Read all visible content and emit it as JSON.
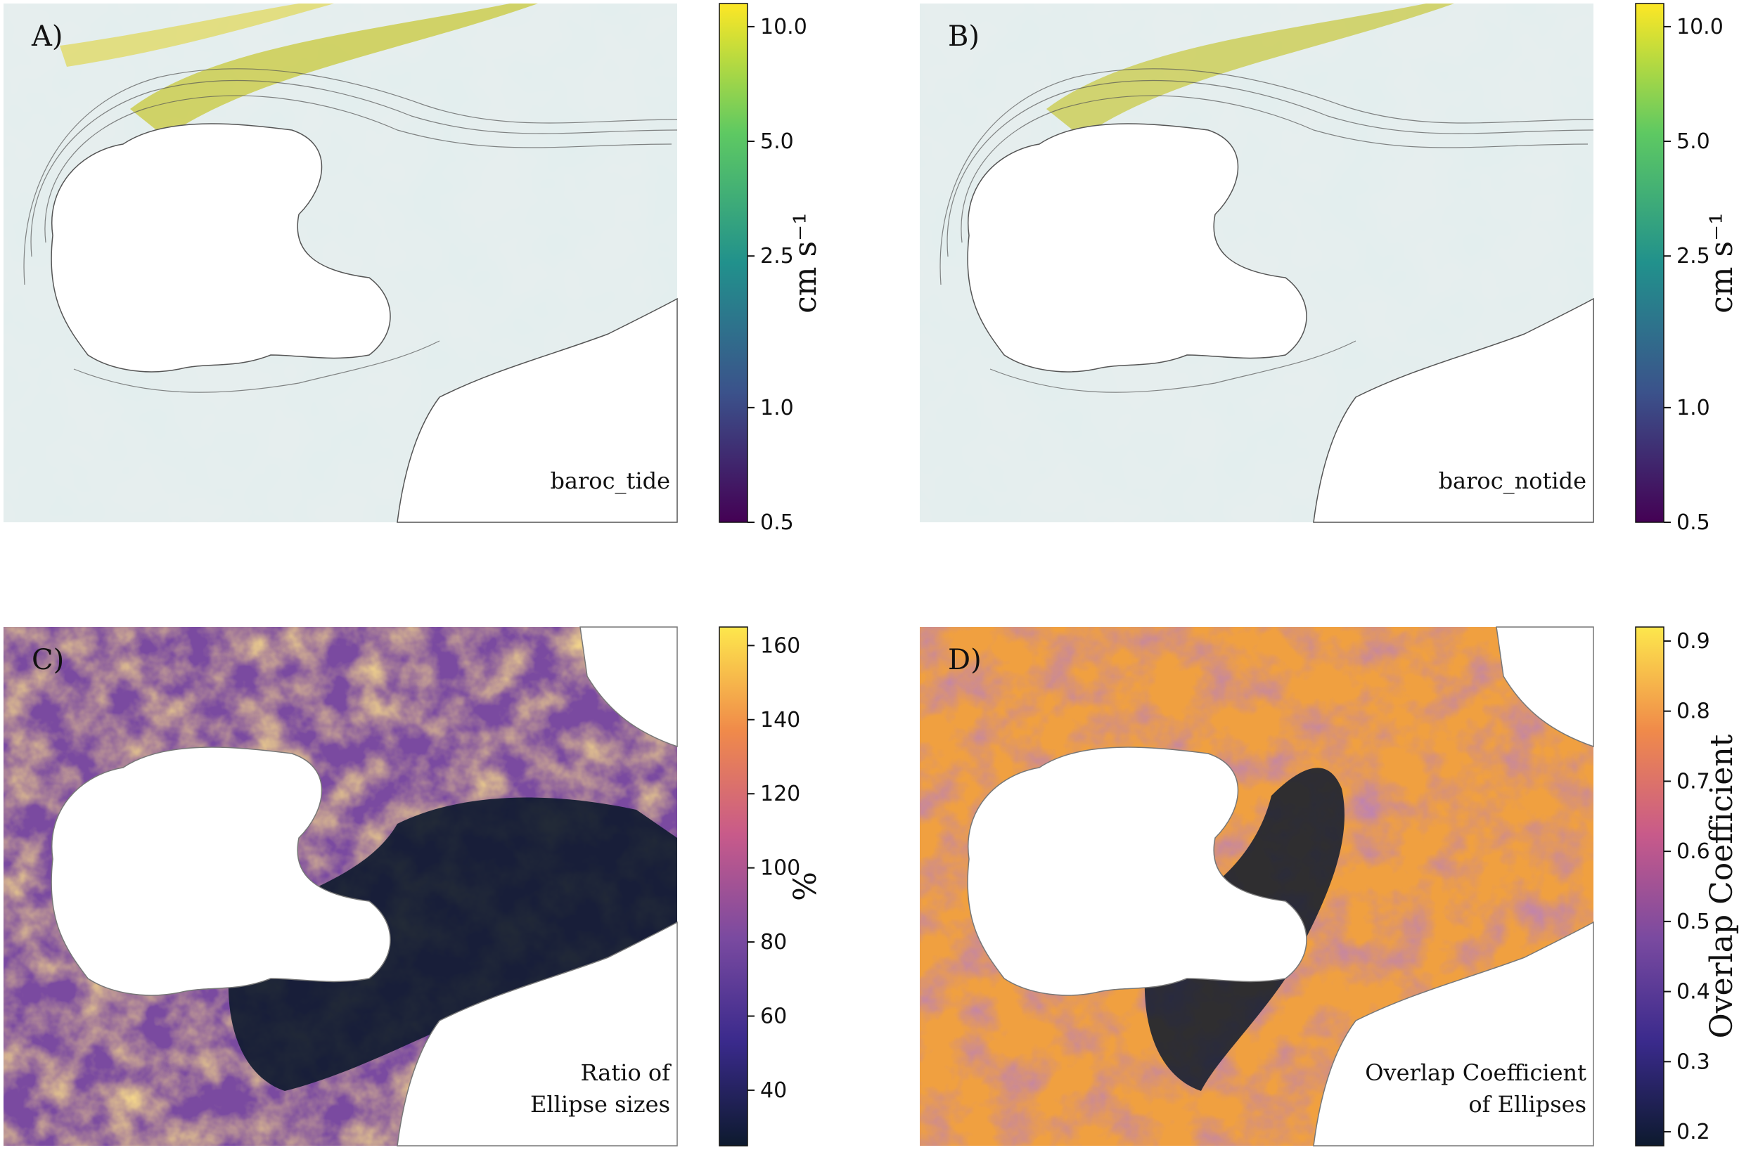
{
  "panels": [
    {
      "id": "A",
      "letter": "A)",
      "caption_lines": [
        "baroc_tide"
      ],
      "kind": "speed"
    },
    {
      "id": "B",
      "letter": "B)",
      "caption_lines": [
        "baroc_notide"
      ],
      "kind": "speed"
    },
    {
      "id": "C",
      "letter": "C)",
      "caption_lines": [
        "Ratio of",
        "Ellipse sizes"
      ],
      "kind": "ratio"
    },
    {
      "id": "D",
      "letter": "D)",
      "caption_lines": [
        "Overlap Coefficient",
        "of Ellipses"
      ],
      "kind": "overlap"
    }
  ],
  "colorbars": [
    {
      "id": "cb-a",
      "label": "cm s⁻¹",
      "scale": "log",
      "range": [
        0.5,
        11.5
      ],
      "ticks": [
        {
          "v": 0.5,
          "t": "0.5"
        },
        {
          "v": 1.0,
          "t": "1.0"
        },
        {
          "v": 2.5,
          "t": "2.5"
        },
        {
          "v": 5.0,
          "t": "5.0"
        },
        {
          "v": 10.0,
          "t": "10.0"
        }
      ],
      "colormap": "viridis"
    },
    {
      "id": "cb-b",
      "label": "cm s⁻¹",
      "scale": "log",
      "range": [
        0.5,
        11.5
      ],
      "ticks": [
        {
          "v": 0.5,
          "t": "0.5"
        },
        {
          "v": 1.0,
          "t": "1.0"
        },
        {
          "v": 2.5,
          "t": "2.5"
        },
        {
          "v": 5.0,
          "t": "5.0"
        },
        {
          "v": 10.0,
          "t": "10.0"
        }
      ],
      "colormap": "viridis"
    },
    {
      "id": "cb-c",
      "label": "%",
      "scale": "linear",
      "range": [
        25,
        165
      ],
      "ticks": [
        {
          "v": 40,
          "t": "40"
        },
        {
          "v": 60,
          "t": "60"
        },
        {
          "v": 80,
          "t": "80"
        },
        {
          "v": 100,
          "t": "100"
        },
        {
          "v": 120,
          "t": "120"
        },
        {
          "v": 140,
          "t": "140"
        },
        {
          "v": 160,
          "t": "160"
        }
      ],
      "colormap": "inferno"
    },
    {
      "id": "cb-d",
      "label": "Overlap Coefficient",
      "scale": "linear",
      "range": [
        0.18,
        0.92
      ],
      "ticks": [
        {
          "v": 0.2,
          "t": "0.2"
        },
        {
          "v": 0.3,
          "t": "0.3"
        },
        {
          "v": 0.4,
          "t": "0.4"
        },
        {
          "v": 0.5,
          "t": "0.5"
        },
        {
          "v": 0.6,
          "t": "0.6"
        },
        {
          "v": 0.7,
          "t": "0.7"
        },
        {
          "v": 0.8,
          "t": "0.8"
        },
        {
          "v": 0.9,
          "t": "0.9"
        }
      ],
      "colormap": "inferno"
    }
  ],
  "colors": {
    "viridis": [
      "#440154",
      "#3b528b",
      "#21918c",
      "#5ec962",
      "#fde725"
    ],
    "inferno": [
      "#0d1a2e",
      "#3a2a8c",
      "#7a4aa0",
      "#c85a8a",
      "#f08a4a",
      "#fde74c"
    ],
    "land": "#ffffff"
  }
}
